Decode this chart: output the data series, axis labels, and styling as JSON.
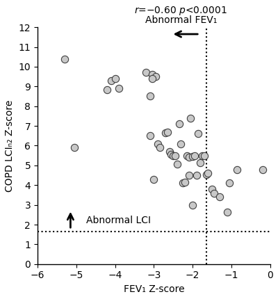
{
  "x_data": [
    -5.3,
    -5.05,
    -4.1,
    -4.0,
    -4.2,
    -3.9,
    -3.1,
    -3.2,
    -3.05,
    -2.95,
    -3.05,
    -2.9,
    -2.85,
    -3.1,
    -3.0,
    -2.7,
    -2.65,
    -2.6,
    -2.55,
    -2.5,
    -2.45,
    -2.4,
    -2.35,
    -2.3,
    -2.25,
    -2.2,
    -2.15,
    -2.1,
    -2.05,
    -2.0,
    -2.1,
    -2.0,
    -1.95,
    -1.9,
    -1.85,
    -1.8,
    -1.75,
    -1.7,
    -1.65,
    -1.6,
    -1.5,
    -1.45,
    -1.3,
    -1.1,
    -1.05,
    -0.85,
    -0.2
  ],
  "y_data": [
    10.4,
    5.9,
    9.3,
    9.4,
    8.85,
    8.9,
    8.5,
    9.7,
    9.6,
    9.5,
    9.4,
    6.1,
    5.9,
    6.5,
    4.3,
    6.65,
    6.7,
    5.7,
    5.55,
    5.5,
    5.5,
    5.05,
    7.1,
    6.1,
    4.1,
    4.15,
    5.5,
    5.4,
    7.4,
    3.0,
    4.5,
    5.45,
    5.5,
    4.5,
    6.6,
    5.15,
    5.5,
    5.5,
    4.55,
    4.6,
    3.8,
    3.6,
    3.4,
    2.65,
    4.1,
    4.8,
    4.8
  ],
  "scatter_color": "#c8c8c8",
  "scatter_edgecolor": "#404040",
  "scatter_size": 55,
  "xlim": [
    -6,
    0
  ],
  "ylim": [
    0,
    12
  ],
  "xticks": [
    -6,
    -5,
    -4,
    -3,
    -2,
    -1,
    0
  ],
  "yticks": [
    0,
    1,
    2,
    3,
    4,
    5,
    6,
    7,
    8,
    9,
    10,
    11,
    12
  ],
  "xlabel": "FEV₁ Z-score",
  "ylabel": "COPD LCIₙ₂ Z-score",
  "hline_y": 1.64,
  "vline_x": -1.645,
  "stats_italic": "r",
  "stats_text": "=−0.60 ",
  "stats_italic2": "p",
  "stats_text2": "<0.0001",
  "annotation_fev": "Abnormal FEV₁",
  "annotation_lci": "Abnormal LCI",
  "background_color": "#ffffff",
  "fontsize": 10
}
